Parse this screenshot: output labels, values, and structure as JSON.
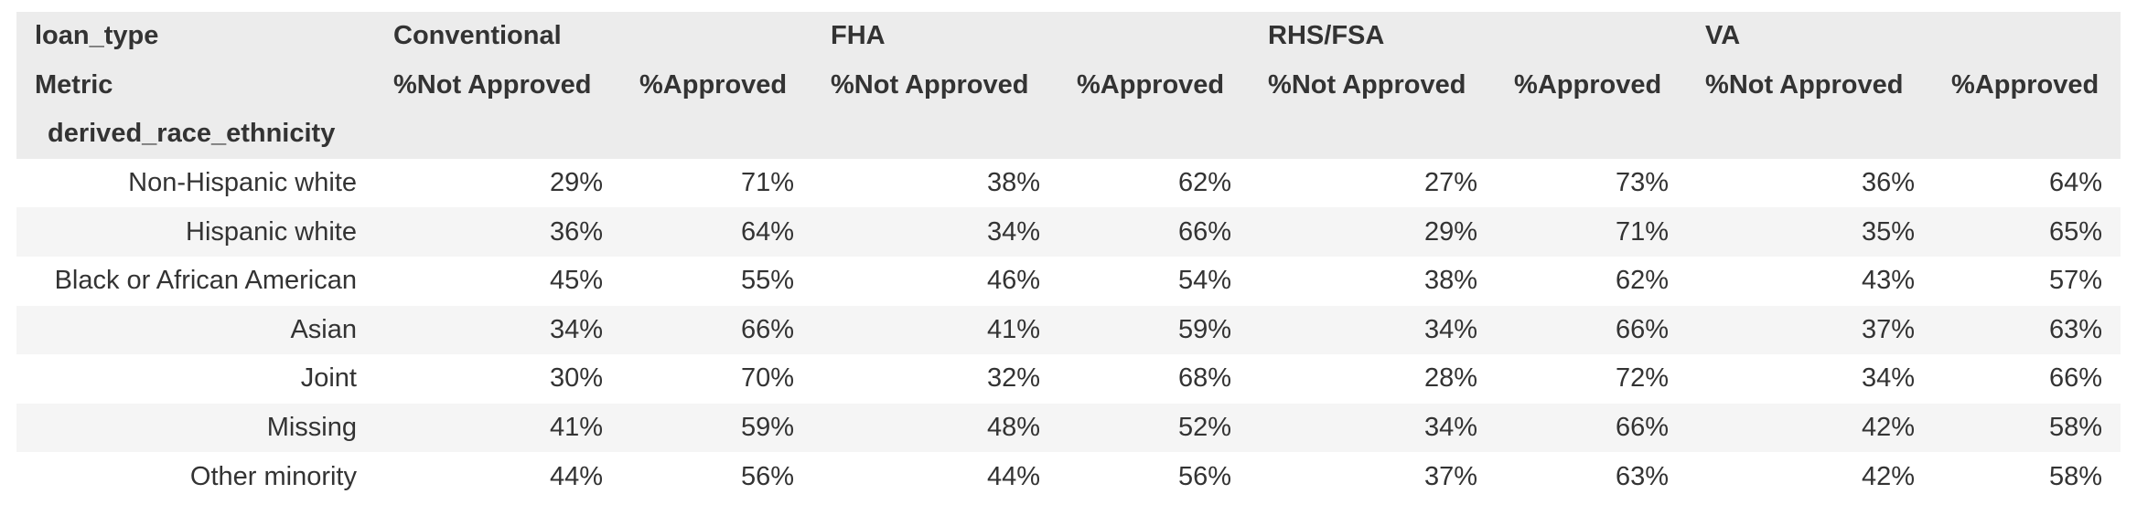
{
  "table": {
    "level0_label": "loan_type",
    "level1_label": "Metric",
    "index_name": "derived_race_ethnicity",
    "loan_types": [
      "Conventional",
      "FHA",
      "RHS/FSA",
      "VA"
    ],
    "metrics": [
      "%Not Approved",
      "%Approved"
    ],
    "rows": [
      {
        "label": "Non-Hispanic white",
        "values": [
          "29%",
          "71%",
          "38%",
          "62%",
          "27%",
          "73%",
          "36%",
          "64%"
        ]
      },
      {
        "label": "Hispanic white",
        "values": [
          "36%",
          "64%",
          "34%",
          "66%",
          "29%",
          "71%",
          "35%",
          "65%"
        ]
      },
      {
        "label": "Black or African American",
        "values": [
          "45%",
          "55%",
          "46%",
          "54%",
          "38%",
          "62%",
          "43%",
          "57%"
        ]
      },
      {
        "label": "Asian",
        "values": [
          "34%",
          "66%",
          "41%",
          "59%",
          "34%",
          "66%",
          "37%",
          "63%"
        ]
      },
      {
        "label": "Joint",
        "values": [
          "30%",
          "70%",
          "32%",
          "68%",
          "28%",
          "72%",
          "34%",
          "66%"
        ]
      },
      {
        "label": "Missing",
        "values": [
          "41%",
          "59%",
          "48%",
          "52%",
          "34%",
          "66%",
          "42%",
          "58%"
        ]
      },
      {
        "label": "Other minority",
        "values": [
          "44%",
          "56%",
          "44%",
          "56%",
          "37%",
          "63%",
          "42%",
          "58%"
        ]
      }
    ]
  }
}
